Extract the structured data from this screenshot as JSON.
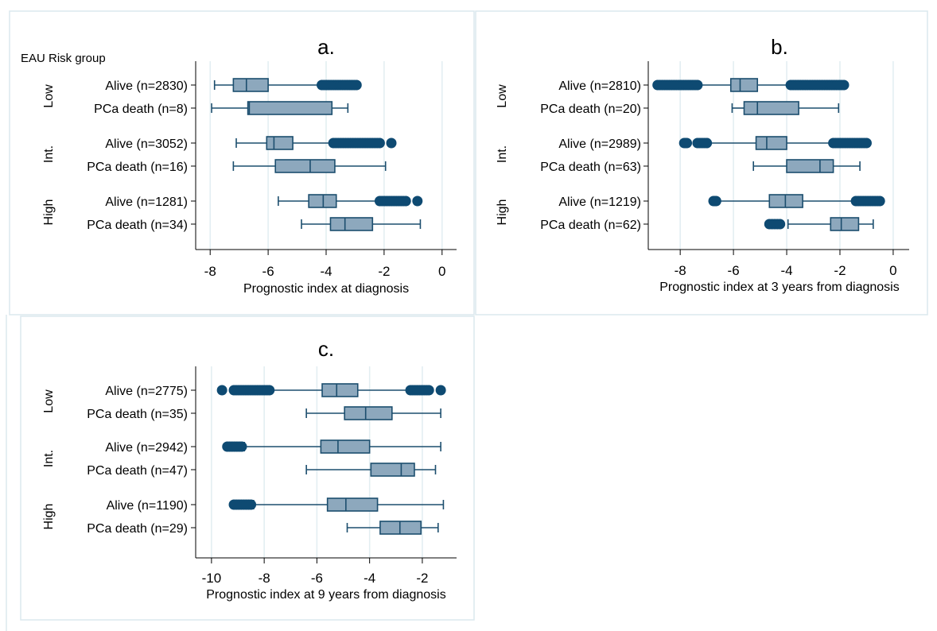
{
  "colors": {
    "box_fill": "#8da8bd",
    "box_stroke": "#1c4e6e",
    "whisker": "#1c4e6e",
    "outlier": "#0e4a72"
  },
  "chart_data": [
    {
      "type": "box",
      "title": "a.",
      "header": "EAU Risk group",
      "xlabel": "Prognostic index at diagnosis",
      "xlim": [
        -8.5,
        0.5
      ],
      "xticks": [
        -8,
        -6,
        -4,
        -2,
        0
      ],
      "tick_labels": [
        "-8",
        "-6",
        "-4",
        "-2",
        "0"
      ],
      "grid": true,
      "groups": [
        {
          "label": "Low",
          "rows": [
            {
              "label": "Alive (n=2830)",
              "whisker_low": -7.85,
              "q1": -7.2,
              "median": -6.75,
              "q3": -6.0,
              "whisker_high": -4.15,
              "outliers": [
                [
                  -4.15,
                  -2.95
                ]
              ]
            },
            {
              "label": "PCa death (n=8)",
              "whisker_low": -7.95,
              "q1": -6.7,
              "median": -6.65,
              "q3": -3.8,
              "whisker_high": -3.25,
              "outliers": []
            }
          ]
        },
        {
          "label": "Int.",
          "rows": [
            {
              "label": "Alive (n=3052)",
              "whisker_low": -7.1,
              "q1": -6.05,
              "median": -5.8,
              "q3": -5.15,
              "whisker_high": -3.75,
              "outliers": [
                [
                  -3.75,
                  -2.15
                ],
                [
                  -1.75,
                  -1.75
                ]
              ]
            },
            {
              "label": "PCa death (n=16)",
              "whisker_low": -7.2,
              "q1": -5.75,
              "median": -4.55,
              "q3": -3.7,
              "whisker_high": -1.95,
              "outliers": []
            }
          ]
        },
        {
          "label": "High",
          "rows": [
            {
              "label": "Alive (n=1281)",
              "whisker_low": -5.65,
              "q1": -4.6,
              "median": -4.1,
              "q3": -3.65,
              "whisker_high": -2.15,
              "outliers": [
                [
                  -2.15,
                  -1.25
                ],
                [
                  -0.85,
                  -0.85
                ]
              ]
            },
            {
              "label": "PCa death (n=34)",
              "whisker_low": -4.85,
              "q1": -3.85,
              "median": -3.35,
              "q3": -2.4,
              "whisker_high": -0.75,
              "outliers": []
            }
          ]
        }
      ]
    },
    {
      "type": "box",
      "title": "b.",
      "header": "",
      "xlabel": "Prognostic index at 3 years from diagnosis",
      "xlim": [
        -9.2,
        0.6
      ],
      "xticks": [
        -8,
        -6,
        -4,
        -2,
        0
      ],
      "tick_labels": [
        "-8",
        "-6",
        "-4",
        "-2",
        "0"
      ],
      "grid": true,
      "groups": [
        {
          "label": "Low",
          "rows": [
            {
              "label": "Alive (n=2810)",
              "whisker_low": -7.35,
              "q1": -6.1,
              "median": -5.75,
              "q3": -5.1,
              "whisker_high": -3.85,
              "outliers": [
                [
                  -8.85,
                  -7.35
                ],
                [
                  -3.85,
                  -1.85
                ]
              ]
            },
            {
              "label": "PCa death (n=20)",
              "whisker_low": -6.05,
              "q1": -5.6,
              "median": -5.1,
              "q3": -3.55,
              "whisker_high": -2.05,
              "outliers": []
            }
          ]
        },
        {
          "label": "Int.",
          "rows": [
            {
              "label": "Alive (n=2989)",
              "whisker_low": -7.0,
              "q1": -5.15,
              "median": -4.75,
              "q3": -4.0,
              "whisker_high": -2.25,
              "outliers": [
                [
                  -7.85,
                  -7.75
                ],
                [
                  -7.35,
                  -7.0
                ],
                [
                  -2.25,
                  -1.0
                ]
              ]
            },
            {
              "label": "PCa death (n=63)",
              "whisker_low": -5.25,
              "q1": -4.0,
              "median": -2.75,
              "q3": -2.25,
              "whisker_high": -1.25,
              "outliers": []
            }
          ]
        },
        {
          "label": "High",
          "rows": [
            {
              "label": "Alive (n=1219)",
              "whisker_low": -6.65,
              "q1": -4.65,
              "median": -4.05,
              "q3": -3.4,
              "whisker_high": -1.4,
              "outliers": [
                [
                  -6.75,
                  -6.65
                ],
                [
                  -1.4,
                  -0.5
                ]
              ]
            },
            {
              "label": "PCa death (n=62)",
              "whisker_low": -3.95,
              "q1": -2.35,
              "median": -1.95,
              "q3": -1.3,
              "whisker_high": -0.75,
              "outliers": [
                [
                  -4.65,
                  -4.25
                ]
              ]
            }
          ]
        }
      ]
    },
    {
      "type": "box",
      "title": "c.",
      "header": "",
      "xlabel": "Prognostic index at 9 years from diagnosis",
      "xlim": [
        -10.6,
        -0.7
      ],
      "xticks": [
        -10,
        -8,
        -6,
        -4,
        -2
      ],
      "tick_labels": [
        "-10",
        "-8",
        "-6",
        "-4",
        "-2"
      ],
      "grid": true,
      "groups": [
        {
          "label": "Low",
          "rows": [
            {
              "label": "Alive (n=2775)",
              "whisker_low": -7.8,
              "q1": -5.8,
              "median": -5.25,
              "q3": -4.45,
              "whisker_high": -2.45,
              "outliers": [
                [
                  -9.6,
                  -9.6
                ],
                [
                  -9.15,
                  -7.8
                ],
                [
                  -2.45,
                  -1.75
                ],
                [
                  -1.3,
                  -1.3
                ]
              ]
            },
            {
              "label": "PCa death (n=35)",
              "whisker_low": -6.4,
              "q1": -4.95,
              "median": -4.15,
              "q3": -3.15,
              "whisker_high": -1.3,
              "outliers": []
            }
          ]
        },
        {
          "label": "Int.",
          "rows": [
            {
              "label": "Alive (n=2942)",
              "whisker_low": -8.75,
              "q1": -5.85,
              "median": -5.2,
              "q3": -4.0,
              "whisker_high": -1.3,
              "outliers": [
                [
                  -9.4,
                  -8.85
                ]
              ]
            },
            {
              "label": "PCa death (n=47)",
              "whisker_low": -6.4,
              "q1": -3.95,
              "median": -2.8,
              "q3": -2.3,
              "whisker_high": -1.5,
              "outliers": []
            }
          ]
        },
        {
          "label": "High",
          "rows": [
            {
              "label": "Alive (n=1190)",
              "whisker_low": -8.4,
              "q1": -5.6,
              "median": -4.9,
              "q3": -3.7,
              "whisker_high": -1.2,
              "outliers": [
                [
                  -9.15,
                  -8.5
                ]
              ]
            },
            {
              "label": "PCa death (n=29)",
              "whisker_low": -4.85,
              "q1": -3.6,
              "median": -2.85,
              "q3": -2.05,
              "whisker_high": -1.4,
              "outliers": []
            }
          ]
        }
      ]
    }
  ]
}
